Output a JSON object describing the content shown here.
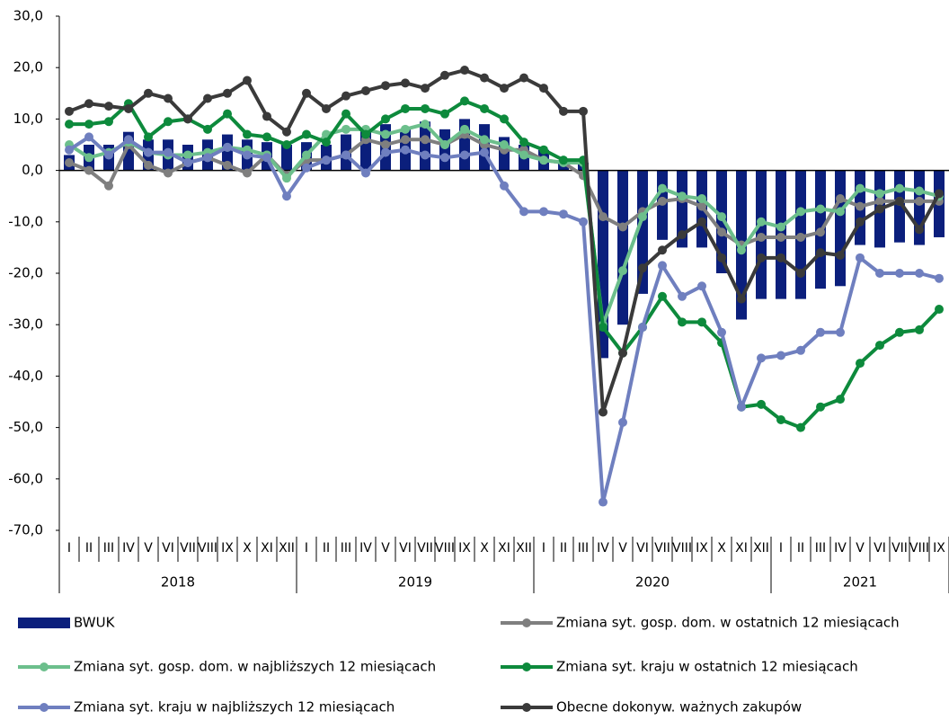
{
  "chart_data": {
    "type": "combo",
    "categories": [
      "I",
      "II",
      "III",
      "IV",
      "V",
      "VI",
      "VII",
      "VIII",
      "IX",
      "X",
      "XI",
      "XII",
      "I",
      "II",
      "III",
      "IV",
      "V",
      "VI",
      "VII",
      "VIII",
      "IX",
      "X",
      "XI",
      "XII",
      "I",
      "II",
      "III",
      "IV",
      "V",
      "VI",
      "VII",
      "VIII",
      "IX",
      "X",
      "XI",
      "XII",
      "I",
      "II",
      "III",
      "IV",
      "V",
      "VI",
      "VII",
      "VIII",
      "IX"
    ],
    "category_groups": [
      {
        "label": "2018",
        "count": 12
      },
      {
        "label": "2019",
        "count": 12
      },
      {
        "label": "2020",
        "count": 12
      },
      {
        "label": "2021",
        "count": 9
      }
    ],
    "ylim": [
      -70,
      30
    ],
    "yticks": [
      {
        "value": -70,
        "label": "-70,0"
      },
      {
        "value": -60,
        "label": "-60,0"
      },
      {
        "value": -50,
        "label": "-50,0"
      },
      {
        "value": -40,
        "label": "-40,0"
      },
      {
        "value": -30,
        "label": "-30,0"
      },
      {
        "value": -20,
        "label": "-20,0"
      },
      {
        "value": -10,
        "label": "-10,0"
      },
      {
        "value": 0,
        "label": "0,0"
      },
      {
        "value": 10,
        "label": "10,0"
      },
      {
        "value": 20,
        "label": "20,0"
      },
      {
        "value": 30,
        "label": "30,0"
      }
    ],
    "grid": false,
    "series": [
      {
        "name": "BWUK",
        "type": "bar",
        "color": "#0b1f7c",
        "values": [
          3,
          5,
          5,
          7.5,
          6,
          6,
          5,
          6,
          7,
          6,
          5.5,
          5,
          5.5,
          5,
          7,
          8,
          9,
          8,
          9.5,
          8,
          10,
          9,
          6.5,
          5,
          4,
          2,
          1.5,
          -36.5,
          -30,
          -24,
          -13.5,
          -15,
          -15,
          -20,
          -29,
          -25,
          -25,
          -25,
          -23,
          -22.5,
          -14.5,
          -15,
          -14,
          -14.5,
          -13
        ]
      },
      {
        "name": "Zmiana syt. gosp. dom. w ostatnich 12 miesiącach",
        "type": "line",
        "color": "#7f7f7f",
        "values": [
          1.5,
          0,
          -3,
          5,
          1,
          -0.5,
          1.5,
          2.5,
          1,
          -0.5,
          3,
          -1,
          2,
          2,
          3,
          6,
          5,
          6,
          6,
          5,
          7,
          5,
          4,
          4,
          2,
          1.5,
          -1,
          -9,
          -11,
          -8,
          -6,
          -5.5,
          -7,
          -12,
          -14.5,
          -13,
          -13,
          -13,
          -12,
          -5.5,
          -7,
          -6,
          -6,
          -6,
          -6
        ]
      },
      {
        "name": "Zmiana syt. gosp. dom. w najbliższych 12 miesiącach",
        "type": "line",
        "color": "#6cbf8c",
        "values": [
          5,
          2.5,
          3.5,
          5.5,
          3.5,
          3,
          3,
          3.5,
          4.5,
          4,
          3,
          -1.5,
          3,
          7,
          8,
          8,
          7,
          8,
          9,
          5,
          8,
          6,
          5,
          3,
          2,
          1.5,
          1.5,
          -30,
          -19.5,
          -9,
          -3.5,
          -5,
          -5.5,
          -9,
          -15.5,
          -10,
          -11,
          -8,
          -7.5,
          -8,
          -3.5,
          -4.5,
          -3.5,
          -4,
          -5
        ]
      },
      {
        "name": "Zmiana syt. kraju w ostatnich 12 miesiącach",
        "type": "line",
        "color": "#0d8a3c",
        "values": [
          9,
          9,
          9.5,
          13,
          6.5,
          9.5,
          10,
          8,
          11,
          7,
          6.5,
          5,
          7,
          5.5,
          11,
          7,
          10,
          12,
          12,
          11,
          13.5,
          12,
          10,
          5.5,
          4,
          2,
          2,
          -30.5,
          -35.5,
          -30.5,
          -24.5,
          -29.5,
          -29.5,
          -33.5,
          -46,
          -45.5,
          -48.5,
          -50,
          -46,
          -44.5,
          -37.5,
          -34,
          -31.5,
          -31,
          -27
        ]
      },
      {
        "name": "Zmiana syt. kraju w najbliższych 12 miesiącach",
        "type": "line",
        "color": "#6f7fbf",
        "values": [
          4,
          6.5,
          3,
          6,
          3.5,
          3.5,
          1.5,
          2.5,
          4.5,
          3,
          2.5,
          -5,
          0.5,
          2,
          3,
          -0.5,
          3.5,
          4,
          3,
          2.5,
          3,
          3.5,
          -3,
          -8,
          -8,
          -8.5,
          -10,
          -64.5,
          -49,
          -30.5,
          -18.5,
          -24.5,
          -22.5,
          -31.5,
          -46,
          -36.5,
          -36,
          -35,
          -31.5,
          -31.5,
          -17,
          -20,
          -20,
          -20,
          -21
        ]
      },
      {
        "name": "Obecne dokonyw. ważnych zakupów",
        "type": "line",
        "color": "#3a3a3a",
        "values": [
          11.5,
          13,
          12.5,
          12,
          15,
          14,
          10,
          14,
          15,
          17.5,
          10.5,
          7.5,
          15,
          12,
          14.5,
          15.5,
          16.5,
          17,
          16,
          18.5,
          19.5,
          18,
          16,
          18,
          16,
          11.5,
          11.5,
          -47,
          -35.5,
          -19,
          -15.5,
          -12.5,
          -10,
          -17,
          -25,
          -17,
          -17,
          -20,
          -16,
          -16.5,
          -10,
          -7.5,
          -6,
          -11.5,
          -4.5
        ]
      }
    ]
  }
}
